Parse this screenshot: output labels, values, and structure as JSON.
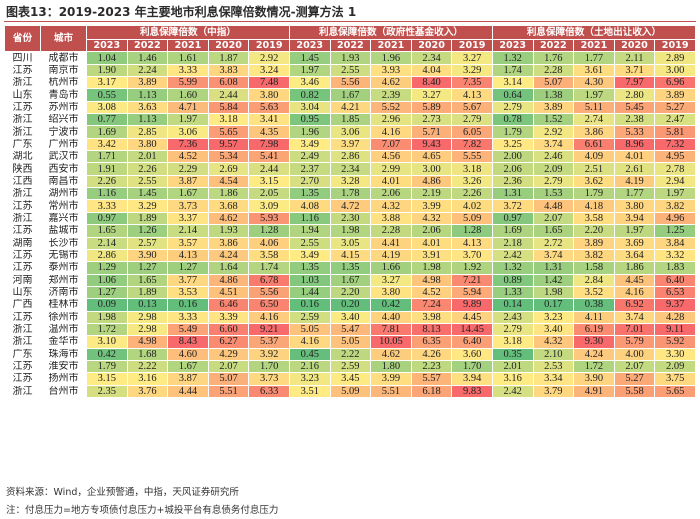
{
  "title": "图表13：2019-2023 年主要地市利息保障倍数情况-测算方法 1",
  "header": {
    "province_label": "省份",
    "city_label": "城市",
    "groups": [
      "利息保障倍数（中指）",
      "利息保障倍数（政府性基金收入）",
      "利息保障倍数（土地出让收入）"
    ],
    "years": [
      "2023",
      "2022",
      "2021",
      "2020",
      "2019"
    ]
  },
  "rows": [
    {
      "province": "四川",
      "city": "成都市",
      "values": [
        [
          1.04,
          1.46,
          1.61,
          1.87,
          2.92
        ],
        [
          1.45,
          1.93,
          1.96,
          2.34,
          3.27
        ],
        [
          1.32,
          1.76,
          1.77,
          2.11,
          2.89
        ]
      ]
    },
    {
      "province": "江苏",
      "city": "南京市",
      "values": [
        [
          1.9,
          2.24,
          3.33,
          3.83,
          3.24
        ],
        [
          1.97,
          2.55,
          3.93,
          4.04,
          3.29
        ],
        [
          1.74,
          2.28,
          3.61,
          3.71,
          3.0
        ]
      ]
    },
    {
      "province": "浙江",
      "city": "杭州市",
      "values": [
        [
          3.17,
          3.89,
          5.99,
          6.08,
          7.48
        ],
        [
          3.46,
          5.56,
          4.62,
          8.4,
          7.35
        ],
        [
          3.14,
          5.07,
          4.3,
          7.97,
          6.96
        ]
      ]
    },
    {
      "province": "山东",
      "city": "青岛市",
      "values": [
        [
          0.55,
          1.13,
          1.6,
          2.44,
          3.8
        ],
        [
          0.82,
          1.67,
          2.39,
          3.27,
          4.13
        ],
        [
          0.64,
          1.38,
          1.97,
          2.8,
          3.89
        ]
      ]
    },
    {
      "province": "江苏",
      "city": "苏州市",
      "values": [
        [
          3.08,
          3.63,
          4.71,
          5.84,
          5.63
        ],
        [
          3.04,
          4.21,
          5.52,
          5.89,
          5.67
        ],
        [
          2.79,
          3.89,
          5.11,
          5.45,
          5.27
        ]
      ]
    },
    {
      "province": "浙江",
      "city": "绍兴市",
      "values": [
        [
          0.77,
          1.13,
          1.97,
          3.18,
          3.41
        ],
        [
          0.95,
          1.85,
          2.96,
          2.73,
          2.79
        ],
        [
          0.78,
          1.52,
          2.74,
          2.38,
          2.47
        ]
      ]
    },
    {
      "province": "浙江",
      "city": "宁波市",
      "values": [
        [
          1.69,
          2.85,
          3.06,
          5.65,
          4.35
        ],
        [
          1.96,
          3.06,
          4.16,
          5.71,
          6.05
        ],
        [
          1.79,
          2.92,
          3.86,
          5.33,
          5.81
        ]
      ]
    },
    {
      "province": "广东",
      "city": "广州市",
      "values": [
        [
          3.42,
          3.8,
          7.36,
          9.57,
          7.98
        ],
        [
          3.49,
          3.97,
          7.07,
          9.43,
          7.82
        ],
        [
          3.25,
          3.74,
          6.61,
          8.96,
          7.32
        ]
      ]
    },
    {
      "province": "湖北",
      "city": "武汉市",
      "values": [
        [
          1.71,
          2.01,
          4.52,
          5.34,
          5.41
        ],
        [
          2.49,
          2.86,
          4.56,
          4.65,
          5.55
        ],
        [
          2.0,
          2.46,
          4.09,
          4.01,
          4.95
        ]
      ]
    },
    {
      "province": "陕西",
      "city": "西安市",
      "values": [
        [
          1.91,
          2.26,
          2.29,
          2.69,
          2.44
        ],
        [
          2.37,
          2.34,
          2.99,
          3.0,
          3.18
        ],
        [
          2.06,
          2.09,
          2.51,
          2.61,
          2.78
        ]
      ]
    },
    {
      "province": "江西",
      "city": "南昌市",
      "values": [
        [
          2.26,
          2.55,
          3.87,
          4.54,
          3.15
        ],
        [
          2.7,
          3.28,
          4.01,
          4.86,
          3.26
        ],
        [
          2.36,
          2.79,
          3.62,
          4.19,
          2.94
        ]
      ]
    },
    {
      "province": "浙江",
      "city": "湖州市",
      "values": [
        [
          1.16,
          1.45,
          1.67,
          1.86,
          2.05
        ],
        [
          1.35,
          1.78,
          2.06,
          2.19,
          2.26
        ],
        [
          1.31,
          1.53,
          1.79,
          1.77,
          1.97
        ]
      ]
    },
    {
      "province": "江苏",
      "city": "常州市",
      "values": [
        [
          3.33,
          3.29,
          3.73,
          3.68,
          3.09
        ],
        [
          4.08,
          4.72,
          4.32,
          3.99,
          4.02
        ],
        [
          3.72,
          4.48,
          4.18,
          3.8,
          3.82
        ]
      ]
    },
    {
      "province": "浙江",
      "city": "嘉兴市",
      "values": [
        [
          0.97,
          1.89,
          3.37,
          4.62,
          5.93
        ],
        [
          1.16,
          2.3,
          3.88,
          4.32,
          5.09
        ],
        [
          0.97,
          2.07,
          3.58,
          3.94,
          4.96
        ]
      ]
    },
    {
      "province": "江苏",
      "city": "盐城市",
      "values": [
        [
          1.65,
          1.26,
          2.14,
          1.93,
          1.28
        ],
        [
          1.94,
          1.98,
          2.28,
          2.06,
          1.28
        ],
        [
          1.69,
          1.65,
          2.2,
          1.97,
          1.25
        ]
      ]
    },
    {
      "province": "湖南",
      "city": "长沙市",
      "values": [
        [
          2.14,
          2.57,
          3.57,
          3.86,
          4.06
        ],
        [
          2.55,
          3.05,
          4.41,
          4.01,
          4.13
        ],
        [
          2.18,
          2.72,
          3.89,
          3.69,
          3.84
        ]
      ]
    },
    {
      "province": "江苏",
      "city": "无锡市",
      "values": [
        [
          2.86,
          3.9,
          4.13,
          4.24,
          3.58
        ],
        [
          3.49,
          4.15,
          4.19,
          3.91,
          3.7
        ],
        [
          2.42,
          3.74,
          3.82,
          3.64,
          3.32
        ]
      ]
    },
    {
      "province": "江苏",
      "city": "泰州市",
      "values": [
        [
          1.29,
          1.27,
          1.27,
          1.64,
          1.74
        ],
        [
          1.35,
          1.35,
          1.66,
          1.98,
          1.92
        ],
        [
          1.32,
          1.31,
          1.58,
          1.86,
          1.83
        ]
      ]
    },
    {
      "province": "河南",
      "city": "郑州市",
      "values": [
        [
          1.06,
          1.65,
          3.77,
          4.86,
          6.78
        ],
        [
          1.03,
          1.67,
          3.27,
          4.98,
          7.21
        ],
        [
          0.89,
          1.42,
          2.84,
          4.45,
          6.4
        ]
      ]
    },
    {
      "province": "山东",
      "city": "济南市",
      "values": [
        [
          1.27,
          1.89,
          3.53,
          4.51,
          5.56
        ],
        [
          1.44,
          2.2,
          3.8,
          4.52,
          5.94
        ],
        [
          1.33,
          1.98,
          3.52,
          4.16,
          6.53
        ]
      ]
    },
    {
      "province": "广西",
      "city": "桂林市",
      "values": [
        [
          0.09,
          0.13,
          0.16,
          6.46,
          6.5
        ],
        [
          0.16,
          0.2,
          0.42,
          7.24,
          9.89
        ],
        [
          0.14,
          0.17,
          0.38,
          6.92,
          9.37
        ]
      ]
    },
    {
      "province": "江苏",
      "city": "徐州市",
      "values": [
        [
          1.98,
          2.98,
          3.33,
          3.39,
          4.16
        ],
        [
          2.59,
          3.4,
          4.4,
          3.98,
          4.45
        ],
        [
          2.43,
          3.23,
          4.11,
          3.74,
          4.28
        ]
      ]
    },
    {
      "province": "浙江",
      "city": "温州市",
      "values": [
        [
          1.72,
          2.98,
          5.49,
          6.6,
          9.21
        ],
        [
          5.05,
          5.47,
          7.81,
          8.13,
          14.45
        ],
        [
          2.79,
          3.4,
          6.19,
          7.01,
          9.11
        ]
      ]
    },
    {
      "province": "浙江",
      "city": "金华市",
      "values": [
        [
          3.1,
          4.98,
          8.43,
          6.27,
          5.37
        ],
        [
          4.16,
          5.05,
          10.05,
          6.35,
          6.4
        ],
        [
          3.18,
          4.32,
          9.3,
          5.79,
          5.92
        ]
      ]
    },
    {
      "province": "广东",
      "city": "珠海市",
      "values": [
        [
          0.42,
          1.68,
          4.6,
          4.29,
          3.92
        ],
        [
          0.45,
          2.22,
          4.62,
          4.26,
          3.6
        ],
        [
          0.35,
          2.1,
          4.24,
          4.0,
          3.3
        ]
      ]
    },
    {
      "province": "江苏",
      "city": "淮安市",
      "values": [
        [
          1.79,
          2.22,
          1.67,
          2.07,
          1.7
        ],
        [
          2.16,
          2.59,
          1.8,
          2.23,
          1.7
        ],
        [
          2.01,
          2.53,
          1.72,
          2.07,
          2.09
        ]
      ]
    },
    {
      "province": "江苏",
      "city": "扬州市",
      "values": [
        [
          3.15,
          3.16,
          3.87,
          5.07,
          3.73
        ],
        [
          3.23,
          3.45,
          3.99,
          5.57,
          3.94
        ],
        [
          3.16,
          3.34,
          3.9,
          5.27,
          3.75
        ]
      ]
    },
    {
      "province": "浙江",
      "city": "台州市",
      "values": [
        [
          2.35,
          3.76,
          4.44,
          5.51,
          6.33
        ],
        [
          3.51,
          5.09,
          5.51,
          6.18,
          9.83
        ],
        [
          2.42,
          3.79,
          4.91,
          5.58,
          5.65
        ]
      ]
    }
  ],
  "footnotes": {
    "source": "资料来源：Wind，企业预警通，中指，天风证券研究所",
    "note": "注：付息压力=地方专项债付息压力+城投平台有息债务付息压力"
  },
  "colors": {
    "header_bg": "#c0504d",
    "title_rule": "#c0504d",
    "scale_low": "#63be7b",
    "scale_mid": "#ffeb84",
    "scale_high": "#f8696b"
  }
}
